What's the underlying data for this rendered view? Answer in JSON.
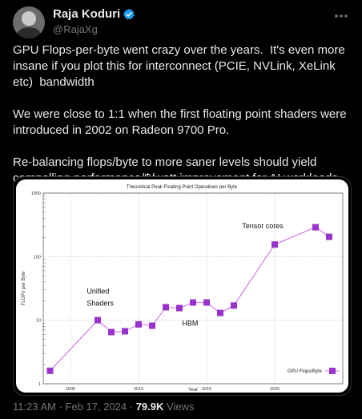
{
  "author": {
    "display_name": "Raja Koduri",
    "handle": "@RajaXg"
  },
  "tweet": {
    "text": "GPU Flops-per-byte went crazy over the years.  It's even more insane if you plot this for interconnect (PCIE, NVLink, XeLink etc)  bandwidth\n\nWe were close to 1:1 when the first floating point shaders were introduced in 2002 on Radeon 9700 Pro.\n\nRe-balancing flops/byte to more saner levels should yield compelling performance/$/watt improvement for AI workloads (probably most GPU workloads)",
    "timestamp": "11:23 AM · Feb 17, 2024 · ",
    "views_count": "79.9K",
    "views_label": " Views"
  },
  "colors": {
    "verified_badge": "#1d9bf0",
    "series": "#bb44dd",
    "marker": "#9933cc"
  },
  "icons": {
    "verified": "verified-badge-icon",
    "more": "more-options-icon"
  },
  "chart_data": {
    "type": "line",
    "title": "Theoretical Peak Floating Point Operations per Byte",
    "xlabel": "Year",
    "ylabel": "FLOPs per Byte",
    "xlim": [
      2003,
      2025
    ],
    "ylim": [
      1,
      1000
    ],
    "yscale": "log",
    "x_ticks": [
      2005,
      2010,
      2015,
      2020
    ],
    "y_ticks": [
      1,
      10,
      100,
      1000
    ],
    "grid": true,
    "legend_position": "bottom-right",
    "series": [
      {
        "name": "GPU Flops/Byte",
        "x": [
          2003.5,
          2007,
          2008,
          2009,
          2010,
          2011,
          2012,
          2013,
          2014,
          2015,
          2016,
          2017,
          2020,
          2023,
          2024
        ],
        "y": [
          1.6,
          10,
          6.5,
          6.7,
          8.6,
          8.2,
          16,
          15.5,
          19,
          19,
          13,
          17,
          155,
          290,
          205
        ]
      }
    ],
    "annotations": [
      {
        "text": "Unified",
        "x": 2006.2,
        "y": 26
      },
      {
        "text": "Shaders",
        "x": 2006.2,
        "y": 17
      },
      {
        "text": "HBM",
        "x": 2013.2,
        "y": 8.2
      },
      {
        "text": "Tensor cores",
        "x": 2017.6,
        "y": 280
      }
    ]
  }
}
